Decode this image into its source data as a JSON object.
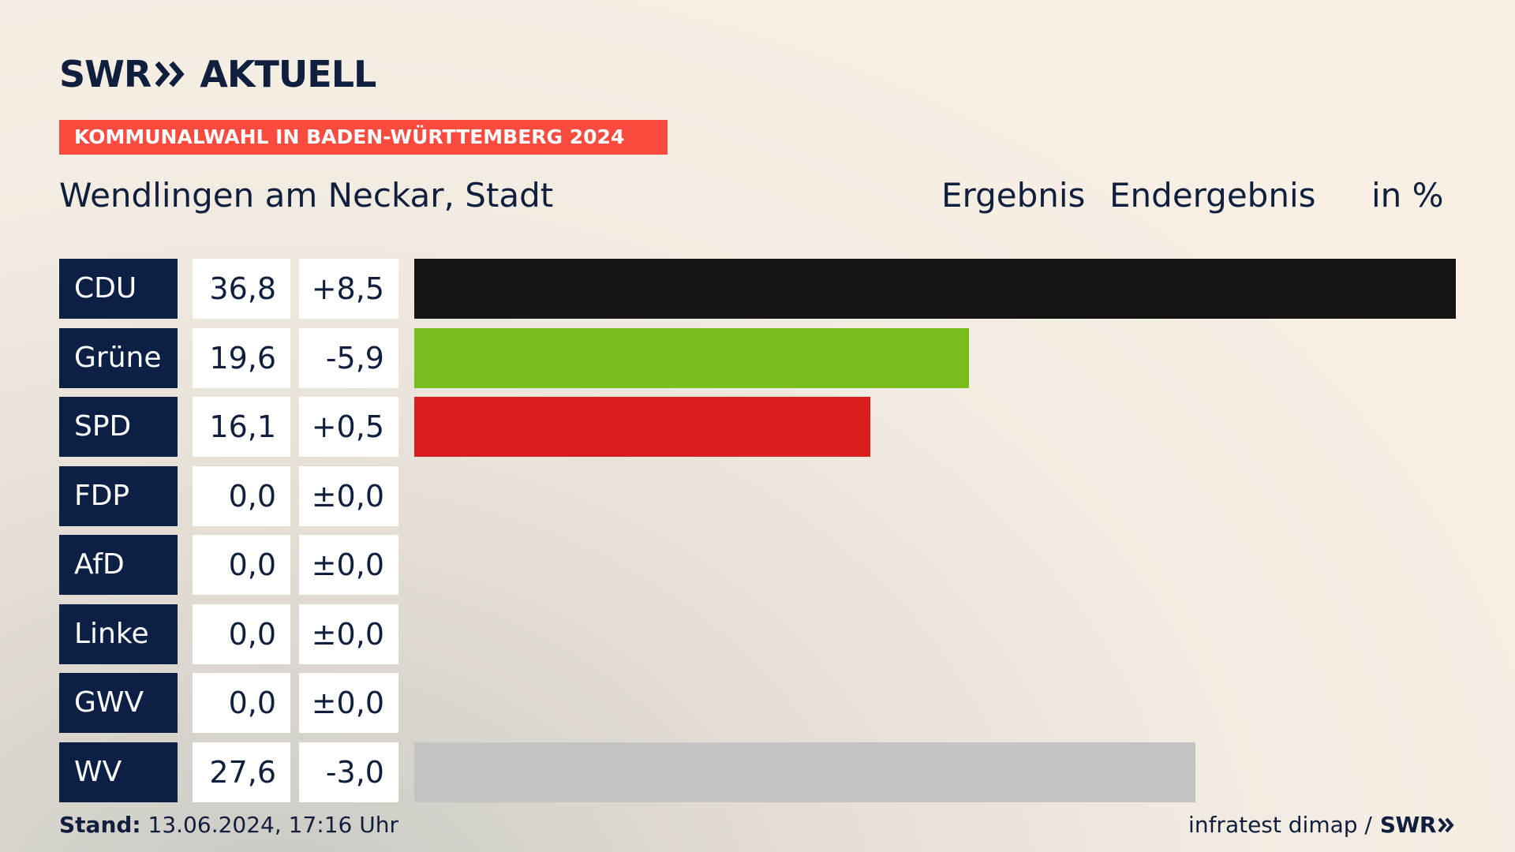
{
  "brand": {
    "left": "SWR",
    "right": "AKTUELL"
  },
  "banner": "KOMMUNALWAHL IN BADEN-WÜRTTEMBERG 2024",
  "subtitle": "Wendlingen am Neckar, Stadt",
  "headers": {
    "ergebnis": "Ergebnis",
    "endergebnis": "Endergebnis",
    "unit": "in %"
  },
  "chart_data": {
    "type": "bar",
    "orientation": "horizontal",
    "title": "KOMMUNALWAHL IN BADEN-WÜRTTEMBERG 2024",
    "subtitle": "Wendlingen am Neckar, Stadt",
    "unit": "in %",
    "max_value": 36.8,
    "categories": [
      "CDU",
      "Grüne",
      "SPD",
      "FDP",
      "AfD",
      "Linke",
      "GWV",
      "WV"
    ],
    "values": [
      36.8,
      19.6,
      16.1,
      0.0,
      0.0,
      0.0,
      0.0,
      27.6
    ],
    "value_labels": [
      "36,8",
      "19,6",
      "16,1",
      "0,0",
      "0,0",
      "0,0",
      "0,0",
      "27,6"
    ],
    "changes": [
      8.5,
      -5.9,
      0.5,
      0.0,
      0.0,
      0.0,
      0.0,
      -3.0
    ],
    "change_labels": [
      "+8,5",
      "-5,9",
      "+0,5",
      "±0,0",
      "±0,0",
      "±0,0",
      "±0,0",
      "-3,0"
    ],
    "colors": [
      "#141414",
      "#78be1e",
      "#d91e1e",
      "#ffe000",
      "#009ee0",
      "#be3075",
      "#8a8a8a",
      "#c4c4c4"
    ]
  },
  "footer": {
    "stand_label": "Stand:",
    "stand_value": "13.06.2024, 17:16 Uhr",
    "source": "infratest dimap /",
    "brand": "SWR"
  }
}
